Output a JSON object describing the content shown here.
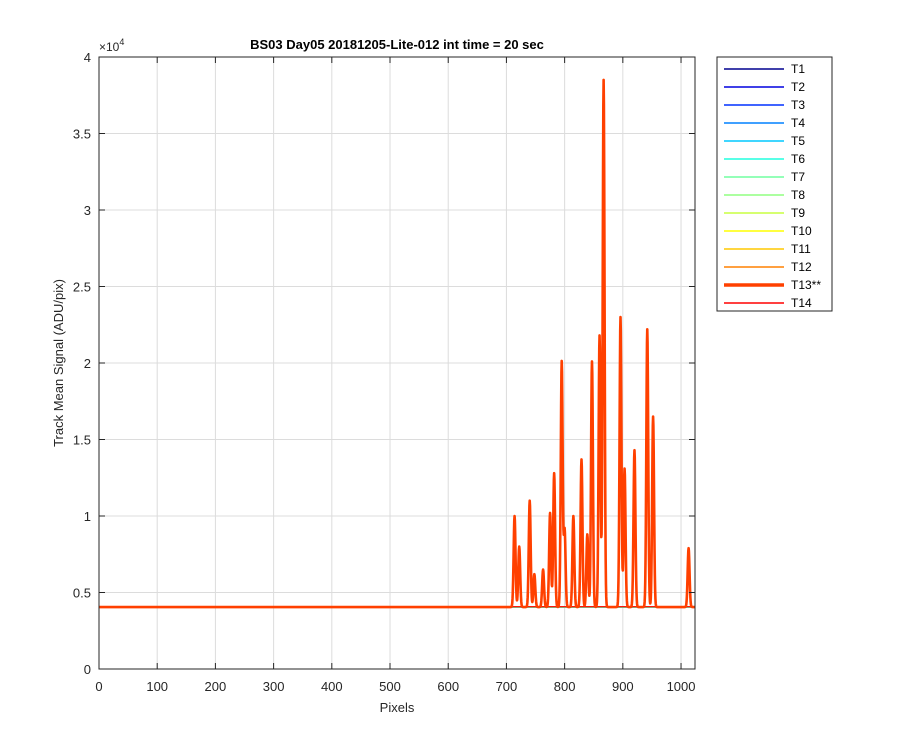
{
  "chart_data": {
    "type": "line",
    "title": "BS03 Day05 20181205-Lite-012 int time = 20 sec",
    "xlabel": "Pixels",
    "ylabel": "Track Mean Signal (ADU/pix)",
    "y_exponent_label": "×10",
    "y_exponent": "4",
    "xlim": [
      0,
      1024
    ],
    "ylim": [
      0,
      40000
    ],
    "x_ticks": [
      0,
      100,
      200,
      300,
      400,
      500,
      600,
      700,
      800,
      900,
      1000
    ],
    "y_ticks": [
      0,
      5000,
      10000,
      15000,
      20000,
      25000,
      30000,
      35000,
      40000
    ],
    "x_tick_labels": [
      "0",
      "100",
      "200",
      "300",
      "400",
      "500",
      "600",
      "700",
      "800",
      "900",
      "1000"
    ],
    "y_tick_labels": [
      "0",
      "0.5",
      "1",
      "1.5",
      "2",
      "2.5",
      "3",
      "3.5",
      "4"
    ],
    "grid": true,
    "legend_position": "outside-right",
    "baseline": 4050,
    "highlight_series": "T13**",
    "peaks": [
      {
        "x": 714,
        "y": 10000
      },
      {
        "x": 722,
        "y": 8000
      },
      {
        "x": 740,
        "y": 11000
      },
      {
        "x": 748,
        "y": 6200
      },
      {
        "x": 763,
        "y": 6500
      },
      {
        "x": 775,
        "y": 10200
      },
      {
        "x": 782,
        "y": 12800
      },
      {
        "x": 795,
        "y": 20100
      },
      {
        "x": 800,
        "y": 9100
      },
      {
        "x": 815,
        "y": 10000
      },
      {
        "x": 829,
        "y": 13700
      },
      {
        "x": 839,
        "y": 8800
      },
      {
        "x": 847,
        "y": 20100
      },
      {
        "x": 860,
        "y": 21800
      },
      {
        "x": 867,
        "y": 38500
      },
      {
        "x": 896,
        "y": 23000
      },
      {
        "x": 903,
        "y": 13100
      },
      {
        "x": 920,
        "y": 14300
      },
      {
        "x": 942,
        "y": 22200
      },
      {
        "x": 952,
        "y": 16500
      },
      {
        "x": 1013,
        "y": 7900
      }
    ],
    "series": [
      {
        "name": "T1",
        "color": "#00008f"
      },
      {
        "name": "T2",
        "color": "#0000df"
      },
      {
        "name": "T3",
        "color": "#0030ff"
      },
      {
        "name": "T4",
        "color": "#0080ff"
      },
      {
        "name": "T5",
        "color": "#00c8ff"
      },
      {
        "name": "T6",
        "color": "#20ffdf"
      },
      {
        "name": "T7",
        "color": "#70ffa0"
      },
      {
        "name": "T8",
        "color": "#90ff80"
      },
      {
        "name": "T9",
        "color": "#c8ff40"
      },
      {
        "name": "T10",
        "color": "#ffff00"
      },
      {
        "name": "T11",
        "color": "#ffc800"
      },
      {
        "name": "T12",
        "color": "#ff8000"
      },
      {
        "name": "T13**",
        "color": "#ff4000"
      },
      {
        "name": "T14",
        "color": "#ff0000"
      }
    ]
  }
}
